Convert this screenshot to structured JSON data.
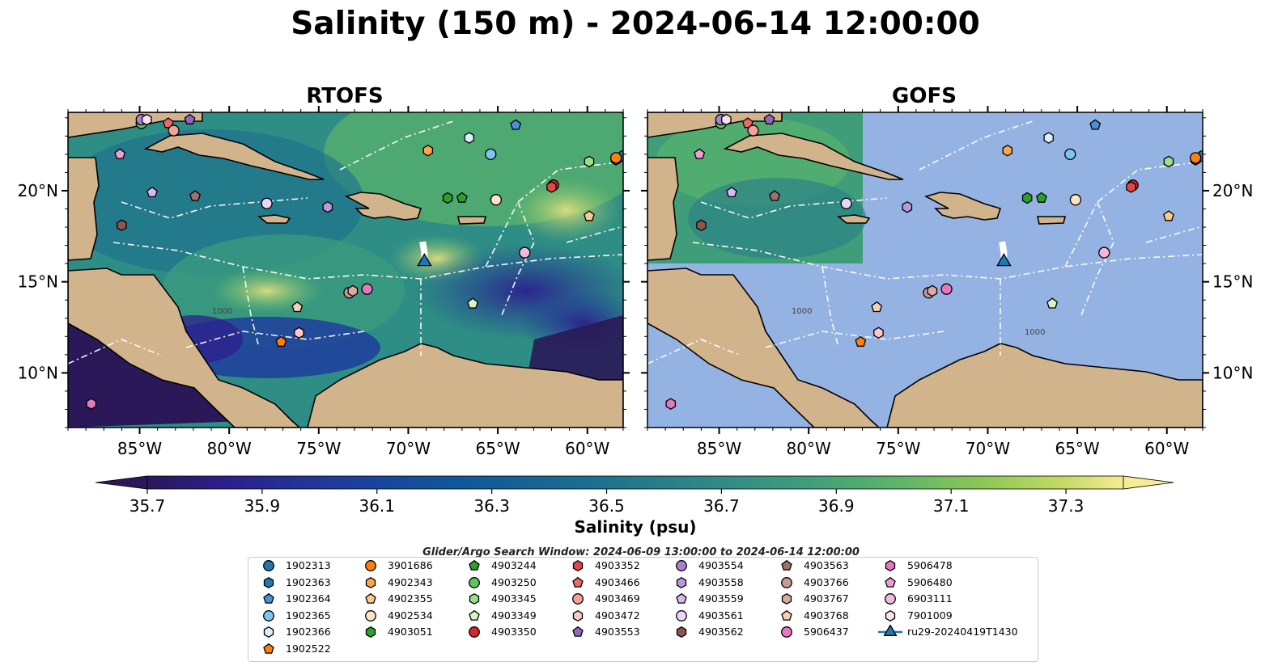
{
  "title": "Salinity (150 m) - 2024-06-14 12:00:00",
  "panels": [
    {
      "title": "RTOFS",
      "model_coverage": "full"
    },
    {
      "title": "GOFS",
      "model_coverage": "partial-west"
    }
  ],
  "map": {
    "lon_range": [
      -89.0,
      -58.0
    ],
    "lat_range": [
      7.0,
      24.3
    ],
    "lon_ticks": [
      -85,
      -80,
      -75,
      -70,
      -65,
      -60
    ],
    "lon_tick_labels": [
      "85°W",
      "80°W",
      "75°W",
      "70°W",
      "65°W",
      "60°W"
    ],
    "lat_ticks": [
      10,
      15,
      20
    ],
    "lat_tick_labels": [
      "10°N",
      "15°N",
      "20°N"
    ],
    "isobath_labels": [
      "1000",
      "1000",
      "1000"
    ],
    "colors": {
      "land": "#d2b48c",
      "ocean": "#95b3e2",
      "eez": "#ffffff",
      "coast": "#000000"
    }
  },
  "colorbar": {
    "label": "Salinity (psu)",
    "ticks": [
      "35.7",
      "35.9",
      "36.1",
      "36.3",
      "36.5",
      "36.7",
      "36.9",
      "37.1",
      "37.3"
    ],
    "range": [
      35.7,
      37.4
    ],
    "extend": "both",
    "colormap": "haline"
  },
  "caption": "Glider/Argo Search Window: 2024-06-09 13:00:00 to 2024-06-14 12:00:00",
  "floats": [
    {
      "id": "1902313",
      "color": "#1f77b4",
      "marker": "circle",
      "lon": -58.0,
      "lat": 21.9
    },
    {
      "id": "1902363",
      "color": "#1f77b4",
      "marker": "hexagon",
      "lon": -58.4,
      "lat": 21.7
    },
    {
      "id": "1902364",
      "color": "#4a90d9",
      "marker": "pentagon",
      "lon": -64.0,
      "lat": 23.6
    },
    {
      "id": "1902365",
      "color": "#7ec4f0",
      "marker": "circle",
      "lon": -65.4,
      "lat": 22.0
    },
    {
      "id": "1902366",
      "color": "#d9f0fa",
      "marker": "hexagon",
      "lon": -66.6,
      "lat": 22.9
    },
    {
      "id": "1902522",
      "color": "#ff7f0e",
      "marker": "pentagon",
      "lon": -77.1,
      "lat": 11.7
    },
    {
      "id": "3901686",
      "color": "#ff7f0e",
      "marker": "circle",
      "lon": -58.4,
      "lat": 21.8
    },
    {
      "id": "4902343",
      "color": "#ffa54f",
      "marker": "hexagon",
      "lon": -68.9,
      "lat": 22.2
    },
    {
      "id": "4902355",
      "color": "#ffc98b",
      "marker": "pentagon",
      "lon": -59.9,
      "lat": 18.6
    },
    {
      "id": "4902534",
      "color": "#ffe4c4",
      "marker": "circle",
      "lon": -65.1,
      "lat": 19.5
    },
    {
      "id": "4903051",
      "color": "#2ca02c",
      "marker": "hexagon",
      "lon": -67.8,
      "lat": 19.6
    },
    {
      "id": "4903244",
      "color": "#2ca02c",
      "marker": "pentagon",
      "lon": -67.0,
      "lat": 19.6
    },
    {
      "id": "4903250",
      "color": "#5cc85c",
      "marker": "circle",
      "lon": -84.9,
      "lat": 23.7
    },
    {
      "id": "4903345",
      "color": "#98df8a",
      "marker": "hexagon",
      "lon": -59.9,
      "lat": 21.6
    },
    {
      "id": "4903349",
      "color": "#d4f7c4",
      "marker": "pentagon",
      "lon": -66.4,
      "lat": 13.8
    },
    {
      "id": "4903350",
      "color": "#d62728",
      "marker": "circle",
      "lon": -61.9,
      "lat": 20.3
    },
    {
      "id": "4903352",
      "color": "#e64546",
      "marker": "hexagon",
      "lon": -62.0,
      "lat": 20.2
    },
    {
      "id": "4903466",
      "color": "#f0676a",
      "marker": "pentagon",
      "lon": -83.4,
      "lat": 23.7
    },
    {
      "id": "4903469",
      "color": "#f4a09a",
      "marker": "circle",
      "lon": -83.1,
      "lat": 23.3
    },
    {
      "id": "4903472",
      "color": "#ffc8c8",
      "marker": "hexagon",
      "lon": -76.1,
      "lat": 12.2
    },
    {
      "id": "4903553",
      "color": "#9467bd",
      "marker": "pentagon",
      "lon": -82.2,
      "lat": 23.9
    },
    {
      "id": "4903554",
      "color": "#a882d0",
      "marker": "circle",
      "lon": -84.9,
      "lat": 23.9
    },
    {
      "id": "4903558",
      "color": "#b99ae0",
      "marker": "hexagon",
      "lon": -74.5,
      "lat": 19.1
    },
    {
      "id": "4903559",
      "color": "#d8b8f0",
      "marker": "pentagon",
      "lon": -84.3,
      "lat": 19.9
    },
    {
      "id": "4903561",
      "color": "#ead7f7",
      "marker": "circle",
      "lon": -77.9,
      "lat": 19.3
    },
    {
      "id": "4903562",
      "color": "#8c564b",
      "marker": "hexagon",
      "lon": -86.0,
      "lat": 18.1
    },
    {
      "id": "4903563",
      "color": "#a0706a",
      "marker": "pentagon",
      "lon": -81.9,
      "lat": 19.7
    },
    {
      "id": "4903766",
      "color": "#c49c94",
      "marker": "circle",
      "lon": -73.3,
      "lat": 14.4
    },
    {
      "id": "4903767",
      "color": "#d9aba2",
      "marker": "hexagon",
      "lon": -73.1,
      "lat": 14.5
    },
    {
      "id": "4903768",
      "color": "#f5d0b8",
      "marker": "pentagon",
      "lon": -76.2,
      "lat": 13.6
    },
    {
      "id": "5906437",
      "color": "#e377c2",
      "marker": "circle",
      "lon": -72.3,
      "lat": 14.6
    },
    {
      "id": "5906478",
      "color": "#e377c2",
      "marker": "hexagon",
      "lon": -87.7,
      "lat": 8.3
    },
    {
      "id": "5906480",
      "color": "#f19cd6",
      "marker": "pentagon",
      "lon": -86.1,
      "lat": 22.0
    },
    {
      "id": "6903111",
      "color": "#f4b8dc",
      "marker": "circle",
      "lon": -63.5,
      "lat": 16.6
    },
    {
      "id": "7901009",
      "color": "#fbe0f0",
      "marker": "hexagon",
      "lon": -84.6,
      "lat": 23.9
    }
  ],
  "glider": {
    "id": "ru29-20240419T1430",
    "color": "#1f77b4",
    "marker": "triangle",
    "track": [
      [
        -69.2,
        17.2
      ],
      [
        -69.1,
        16.6
      ],
      [
        -69.1,
        16.3
      ]
    ],
    "lon": -69.1,
    "lat": 16.1
  }
}
